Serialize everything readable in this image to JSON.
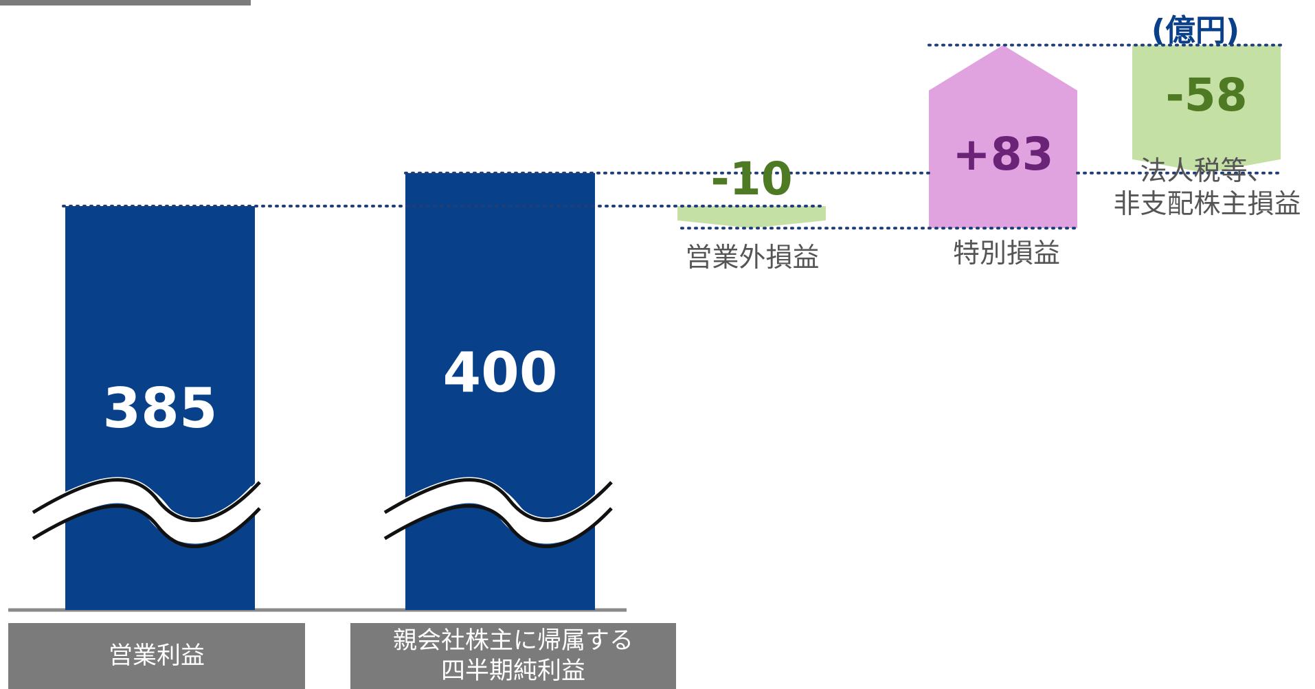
{
  "unit": "(億円)",
  "colors": {
    "bar": "#08408a",
    "negative_fill": "#c5e0a5",
    "negative_text": "#4f7a24",
    "positive_fill": "#e0a3e0",
    "positive_text": "#6b2378",
    "dotted_line": "#1f3f7a",
    "category_box": "#7b7b7b",
    "axis_line": "#8a8a8a"
  },
  "chart_data": {
    "type": "bar",
    "subtype": "waterfall",
    "axis_break": true,
    "grid": false,
    "title": "",
    "xlabel": "",
    "ylabel": "",
    "categories": [
      "営業利益",
      "親会社株主に帰属する\n四半期純利益",
      "営業外損益",
      "特別損益",
      "法人税等、\n非支配株主損益"
    ],
    "bars": [
      {
        "label": "営業利益",
        "value": 385,
        "display": "385"
      },
      {
        "label": "親会社株主に帰属する\n四半期純利益",
        "value": 400,
        "display": "400"
      }
    ],
    "steps": [
      {
        "label": "営業外損益",
        "start": 385,
        "change": -10,
        "display": "-10"
      },
      {
        "label": "特別損益",
        "start": 375,
        "change": 83,
        "display": "+83"
      },
      {
        "label": "法人税等、\n非支配株主損益",
        "start": 458,
        "change": -58,
        "display": "-58"
      }
    ]
  }
}
